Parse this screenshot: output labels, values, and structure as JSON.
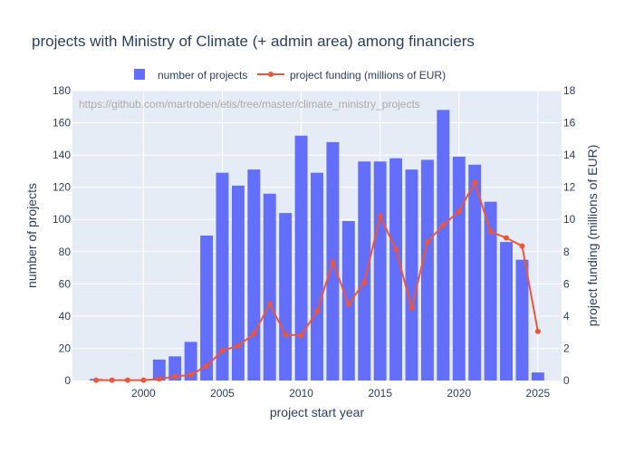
{
  "chart_data": {
    "type": "bar",
    "title": "projects with Ministry of Climate (+ admin area) among financiers",
    "xlabel": "project start year",
    "ylabel": "number of projects",
    "y2label": "project funding (millions of EUR)",
    "annotation": "https://github.com/martroben/etis/tree/master/climate_ministry_projects",
    "xlim": [
      1995.5,
      2026.5
    ],
    "ylim": [
      0,
      180
    ],
    "y2lim": [
      0,
      18
    ],
    "xticks": [
      2000,
      2005,
      2010,
      2015,
      2020,
      2025
    ],
    "yticks": [
      0,
      20,
      40,
      60,
      80,
      100,
      120,
      140,
      160,
      180
    ],
    "y2ticks": [
      0,
      2,
      4,
      6,
      8,
      10,
      12,
      14,
      16,
      18
    ],
    "legend_position": "top-center",
    "grid": true,
    "colors": {
      "bar": "#636efa",
      "line": "#ef553b",
      "plot_bg": "#e5ecf6",
      "text": "#2a3f5f"
    },
    "series": [
      {
        "name": "number of projects",
        "kind": "bar",
        "axis": "y",
        "x": [
          1997,
          2001,
          2002,
          2003,
          2004,
          2005,
          2006,
          2007,
          2008,
          2009,
          2010,
          2011,
          2012,
          2013,
          2014,
          2015,
          2016,
          2017,
          2018,
          2019,
          2020,
          2021,
          2022,
          2023,
          2024,
          2025
        ],
        "values": [
          1,
          13,
          15,
          24,
          90,
          129,
          121,
          131,
          116,
          104,
          152,
          129,
          148,
          99,
          136,
          136,
          138,
          131,
          137,
          168,
          139,
          134,
          111,
          86,
          75,
          5
        ]
      },
      {
        "name": "project funding (millions of EUR)",
        "kind": "line",
        "axis": "y2",
        "x": [
          1997,
          1998,
          1999,
          2000,
          2001,
          2002,
          2003,
          2004,
          2005,
          2006,
          2007,
          2008,
          2009,
          2010,
          2011,
          2012,
          2013,
          2014,
          2015,
          2016,
          2017,
          2018,
          2019,
          2020,
          2021,
          2022,
          2023,
          2024,
          2025
        ],
        "values": [
          0.02,
          0.02,
          0.02,
          0.02,
          0.1,
          0.25,
          0.35,
          0.9,
          1.85,
          2.15,
          2.9,
          4.75,
          2.85,
          2.8,
          4.3,
          7.35,
          4.75,
          6.1,
          10.2,
          8.15,
          4.5,
          8.6,
          9.65,
          10.5,
          12.3,
          9.25,
          8.85,
          8.35,
          3.05
        ]
      }
    ]
  }
}
